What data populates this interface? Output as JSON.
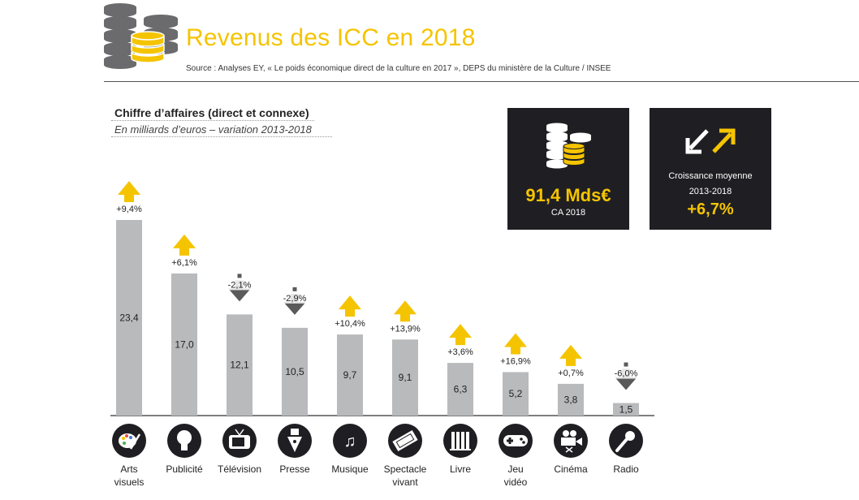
{
  "header": {
    "title": "Revenus des ICC en 2018",
    "source": "Source : Analyses EY, « Le poids économique direct de la culture en 2017 », DEPS du ministère de la Culture / INSEE"
  },
  "chart_data": {
    "type": "bar",
    "title": "Chiffre d’affaires (direct et connexe)",
    "subtitle": "En milliards d’euros – variation 2013-2018",
    "ylabel": "En milliards d’euros",
    "ylim": [
      0,
      25
    ],
    "categories": [
      "Arts visuels",
      "Publicité",
      "Télévision",
      "Presse",
      "Musique",
      "Spectacle vivant",
      "Livre",
      "Jeu vidéo",
      "Cinéma",
      "Radio"
    ],
    "category_lines": [
      [
        "Arts",
        "visuels"
      ],
      [
        "Publicité"
      ],
      [
        "Télévision"
      ],
      [
        "Presse"
      ],
      [
        "Musique"
      ],
      [
        "Spectacle",
        "vivant"
      ],
      [
        "Livre"
      ],
      [
        "Jeu",
        "vidéo"
      ],
      [
        "Cinéma"
      ],
      [
        "Radio"
      ]
    ],
    "values": [
      23.4,
      17.0,
      12.1,
      10.5,
      9.7,
      9.1,
      6.3,
      5.2,
      3.8,
      1.5
    ],
    "value_labels": [
      "23,4",
      "17,0",
      "12,1",
      "10,5",
      "9,7",
      "9,1",
      "6,3",
      "5,2",
      "3,8",
      "1,5"
    ],
    "variation": [
      "+9,4%",
      "+6,1%",
      "-2,1%",
      "-2,9%",
      "+10,4%",
      "+13,9%",
      "+3,6%",
      "+16,9%",
      "+0,7%",
      "-6,0%"
    ],
    "direction": [
      "up",
      "up",
      "down",
      "down",
      "up",
      "up",
      "up",
      "up",
      "up",
      "down"
    ],
    "icons": [
      "palette-icon",
      "lightbulb-icon",
      "television-icon",
      "pen-nib-icon",
      "music-notes-icon",
      "ticket-icon",
      "books-icon",
      "gamepad-icon",
      "film-camera-icon",
      "microphone-icon"
    ]
  },
  "kpis": {
    "revenue": {
      "value": "91,4 Mds€",
      "label": "CA 2018"
    },
    "growth": {
      "label_line1": "Croissance moyenne",
      "label_line2": "2013-2018",
      "value": "+6,7%"
    }
  },
  "colors": {
    "accent": "#f5c400",
    "bar": "#b8babc",
    "arrow_down": "#5a5a5a",
    "dark": "#1f1f23"
  }
}
